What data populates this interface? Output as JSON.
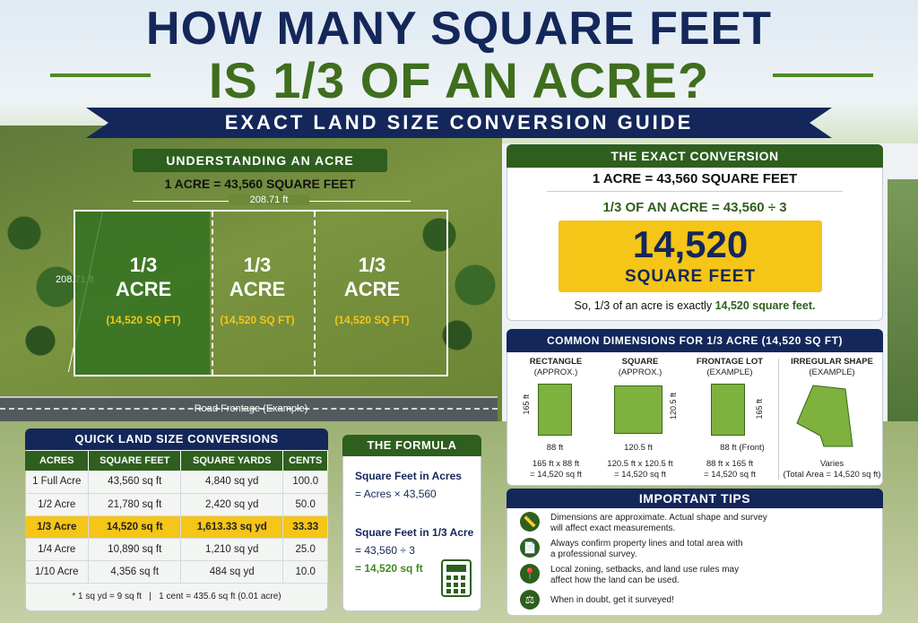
{
  "title": {
    "line1": "HOW MANY SQUARE FEET",
    "line2": "IS 1/3 OF AN ACRE?",
    "subtitle": "EXACT LAND SIZE CONVERSION GUIDE"
  },
  "understanding": {
    "heading": "UNDERSTANDING AN ACRE",
    "fact": "1 ACRE = 43,560 SQUARE FEET",
    "width_label": "208.71 ft",
    "height_label": "208.71 ft",
    "lots": [
      {
        "fraction": "1/3",
        "unit": "ACRE",
        "sqft": "(14,520 SQ FT)"
      },
      {
        "fraction": "1/3",
        "unit": "ACRE",
        "sqft": "(14,520 SQ FT)"
      },
      {
        "fraction": "1/3",
        "unit": "ACRE",
        "sqft": "(14,520 SQ FT)"
      }
    ],
    "road": "Road Frontage (Example)"
  },
  "conversion": {
    "heading": "THE EXACT CONVERSION",
    "line1": "1 ACRE = 43,560 SQUARE FEET",
    "line2": "1/3 OF AN ACRE = 43,560 ÷ 3",
    "big_number": "14,520",
    "big_unit": "SQUARE FEET",
    "summary_pre": "So, 1/3 of an acre is exactly",
    "summary_value": "14,520 square feet."
  },
  "dimensions": {
    "heading": "COMMON DIMENSIONS FOR 1/3 ACRE (14,520 SQ FT)",
    "items": [
      {
        "title": "RECTANGLE",
        "sub": "(APPROX.)",
        "side": "165 ft",
        "bottom": "88 ft",
        "l1": "165 ft x 88 ft",
        "l2": "= 14,520 sq ft"
      },
      {
        "title": "SQUARE",
        "sub": "(APPROX.)",
        "side": "120.5 ft",
        "bottom": "120.5 ft",
        "l1": "120.5 ft x 120.5 ft",
        "l2": "= 14,520 sq ft"
      },
      {
        "title": "FRONTAGE LOT",
        "sub": "(EXAMPLE)",
        "side": "165 ft",
        "bottom": "88 ft",
        "front": "(Front)",
        "l1": "88 ft x 165 ft",
        "l2": "= 14,520 sq ft"
      },
      {
        "title": "IRREGULAR SHAPE",
        "sub": "(EXAMPLE)",
        "l1": "Varies",
        "l2": "(Total Area = 14,520 sq ft)"
      }
    ]
  },
  "quick": {
    "heading": "QUICK LAND SIZE CONVERSIONS",
    "columns": [
      "ACRES",
      "SQUARE FEET",
      "SQUARE YARDS",
      "CENTS"
    ],
    "rows": [
      [
        "1 Full Acre",
        "43,560 sq ft",
        "4,840 sq yd",
        "100.0"
      ],
      [
        "1/2 Acre",
        "21,780 sq ft",
        "2,420 sq yd",
        "50.0"
      ],
      [
        "1/3 Acre",
        "14,520 sq ft",
        "1,613.33 sq yd",
        "33.33"
      ],
      [
        "1/4 Acre",
        "10,890 sq ft",
        "1,210 sq yd",
        "25.0"
      ],
      [
        "1/10 Acre",
        "4,356 sq ft",
        "484 sq yd",
        "10.0"
      ]
    ],
    "footnote": "* 1 sq yd = 9 sq ft   |   1 cent = 435.6 sq ft (0.01 acre)"
  },
  "formula": {
    "heading": "THE FORMULA",
    "l1": "Square Feet in Acres",
    "l2": "= Acres × 43,560",
    "l3": "Square Feet in 1/3 Acre",
    "l4": "= 43,560 ÷ 3",
    "l5": "= 14,520 sq ft",
    "icon": "calculator-icon"
  },
  "tips": {
    "heading": "IMPORTANT TIPS",
    "items": [
      {
        "icon": "ruler-icon",
        "text1": "Dimensions are approximate. Actual shape and survey",
        "text2": "will affect exact measurements."
      },
      {
        "icon": "document-icon",
        "text1": "Always confirm property lines and total area with",
        "text2": "a professional survey."
      },
      {
        "icon": "location-pin-icon",
        "text1": "Local zoning, setbacks, and land use rules may",
        "text2": "affect how the land can be used."
      },
      {
        "icon": "scales-icon",
        "text1": "When in doubt, get it surveyed!",
        "text2": ""
      }
    ]
  },
  "colors": {
    "navy": "#14275a",
    "green": "#2e5f1e",
    "yellow": "#f5c518"
  }
}
